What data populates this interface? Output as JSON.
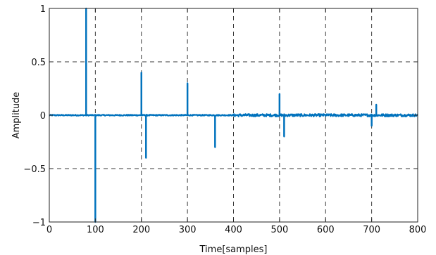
{
  "chart_data": {
    "type": "line",
    "title": "",
    "xlabel": "Time[samples]",
    "ylabel": "Amplitude",
    "xlim": [
      0,
      800
    ],
    "ylim": [
      -1,
      1
    ],
    "xticks": [
      0,
      100,
      200,
      300,
      400,
      500,
      600,
      700,
      800
    ],
    "yticks": [
      -1,
      -0.5,
      0,
      0.5,
      1
    ],
    "xtick_labels": [
      "0",
      "100",
      "200",
      "300",
      "400",
      "500",
      "600",
      "700",
      "800"
    ],
    "ytick_labels": [
      "−1",
      "−0.5",
      "0",
      "0.5",
      "1"
    ],
    "grid": true,
    "line_color": "#0072BD",
    "series": [
      {
        "impulses": [
          {
            "x": 80,
            "y": 1.0
          },
          {
            "x": 100,
            "y": -1.0
          },
          {
            "x": 200,
            "y": 0.4
          },
          {
            "x": 210,
            "y": -0.4
          },
          {
            "x": 300,
            "y": 0.3
          },
          {
            "x": 360,
            "y": -0.3
          },
          {
            "x": 500,
            "y": 0.2
          },
          {
            "x": 510,
            "y": -0.2
          },
          {
            "x": 700,
            "y": -0.1
          },
          {
            "x": 710,
            "y": 0.1
          }
        ],
        "noise_segments": [
          {
            "x_start": 0,
            "x_end": 400,
            "amplitude": 0.005
          },
          {
            "x_start": 400,
            "x_end": 800,
            "amplitude": 0.012
          }
        ]
      }
    ]
  }
}
